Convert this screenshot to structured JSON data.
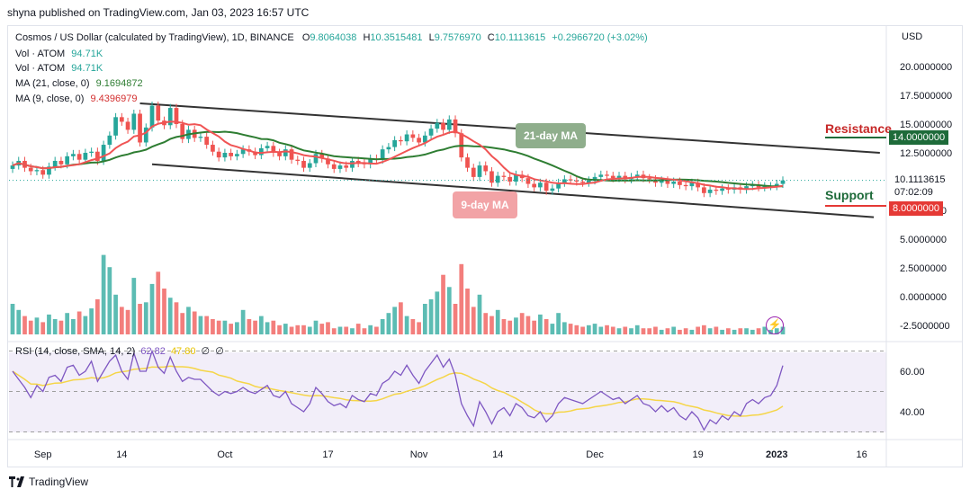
{
  "headline": "shyna published on TradingView.com, Jan 03, 2023 16:57 UTC",
  "legend": {
    "symbol": "Cosmos / US Dollar (calculated by TradingView), 1D, BINANCE",
    "o_label": "O",
    "o": "9.8064038",
    "h_label": "H",
    "h": "10.3515481",
    "l_label": "L",
    "l": "9.7576970",
    "c_label": "C",
    "c": "10.1113615",
    "change": "+0.2966720 (+3.02%)",
    "vol1_label": "Vol · ATOM",
    "vol1": "94.71K",
    "vol2_label": "Vol · ATOM",
    "vol2": "94.71K",
    "ma21_label": "MA (21, close, 0)",
    "ma21": "9.1694872",
    "ma9_label": "MA (9, close, 0)",
    "ma9": "9.4396979",
    "rsi_label": "RSI (14, close, SMA, 14, 2)",
    "rsi": "62.82",
    "rsi_sma": "47.80",
    "rsi_extra1": "∅",
    "rsi_extra2": "∅"
  },
  "currency": "USD",
  "annotations": {
    "ma21": "21-day MA",
    "ma9": "9-day MA",
    "resistance": "Resistance",
    "support": "Support"
  },
  "tags": {
    "resistance_value": "14.0000000",
    "price_value": "10.1113615",
    "countdown": "07:02:09",
    "support_value": "8.0000000"
  },
  "colors": {
    "up": "#26a69a",
    "down": "#ef5350",
    "ma21": "#2e7d32",
    "ma9": "#f05454",
    "resistance": "#1e6b3a",
    "support": "#e53935",
    "rsi_line": "#7e57c2",
    "rsi_sma": "#f5d547"
  },
  "footer": "TradingView",
  "chart_data": {
    "type": "candlestick",
    "price_ticks": [
      "20.0000000",
      "17.5000000",
      "15.0000000",
      "12.5000000",
      "10.0000000",
      "7.5000000",
      "5.0000000",
      "2.5000000",
      "0.0000000",
      "-2.5000000"
    ],
    "price_tick_values": [
      20,
      17.5,
      15,
      12.5,
      10,
      7.5,
      5,
      2.5,
      0,
      -2.5
    ],
    "rsi_ticks": [
      "60.00",
      "40.00"
    ],
    "rsi_tick_values": [
      60,
      40
    ],
    "x_labels": [
      "Sep",
      "14",
      "Oct",
      "17",
      "Nov",
      "14",
      "Dec",
      "19",
      "2023",
      "16"
    ],
    "x_label_index": [
      5,
      18,
      35,
      52,
      67,
      80,
      96,
      113,
      126,
      140
    ],
    "resistance": 14,
    "support": 8,
    "last_close": 10.1113615,
    "trend_upper": [
      [
        21,
        16.8
      ],
      [
        143,
        12.5
      ]
    ],
    "trend_lower": [
      [
        23,
        11.5
      ],
      [
        142,
        6.9
      ]
    ],
    "closes": [
      11.4,
      11.8,
      11.2,
      10.9,
      11.0,
      10.6,
      11.3,
      11.8,
      11.5,
      12.2,
      12.4,
      11.9,
      12.5,
      12.6,
      11.8,
      13.2,
      14.0,
      15.6,
      15.2,
      14.5,
      15.9,
      13.4,
      14.7,
      16.6,
      15.3,
      14.9,
      16.4,
      15.0,
      13.7,
      14.5,
      13.8,
      13.9,
      13.2,
      12.6,
      12.1,
      12.5,
      12.2,
      12.4,
      12.8,
      12.6,
      12.3,
      12.9,
      13.1,
      12.5,
      12.2,
      12.8,
      11.9,
      11.8,
      11.2,
      11.6,
      12.4,
      12.0,
      11.5,
      11.1,
      11.4,
      11.2,
      11.8,
      11.6,
      11.5,
      12.0,
      11.9,
      12.8,
      13.0,
      13.6,
      13.5,
      14.1,
      13.8,
      13.4,
      14.0,
      14.6,
      15.1,
      14.5,
      15.4,
      14.2,
      12.1,
      11.2,
      10.4,
      11.4,
      10.9,
      9.9,
      10.5,
      10.4,
      10.0,
      10.6,
      10.3,
      9.8,
      9.5,
      9.9,
      9.2,
      9.4,
      9.9,
      10.2,
      10.1,
      10.0,
      9.9,
      10.1,
      10.4,
      10.6,
      10.5,
      10.3,
      10.5,
      10.2,
      10.4,
      10.6,
      10.3,
      10.2,
      9.9,
      10.1,
      9.8,
      10.0,
      9.7,
      9.6,
      9.9,
      9.5,
      9.0,
      9.3,
      9.2,
      9.4,
      9.3,
      9.5,
      9.3,
      9.6,
      9.7,
      9.5,
      9.6,
      9.6,
      9.8,
      10.1
    ],
    "volumes": [
      2.0,
      1.6,
      1.2,
      0.9,
      1.1,
      0.8,
      1.3,
      1.0,
      0.9,
      1.4,
      1.0,
      1.5,
      1.2,
      1.7,
      2.3,
      5.2,
      4.4,
      2.6,
      1.8,
      1.6,
      3.7,
      2.0,
      2.1,
      3.3,
      4.1,
      3.0,
      2.4,
      2.1,
      1.4,
      1.8,
      1.5,
      1.2,
      1.2,
      1.0,
      0.9,
      0.9,
      0.7,
      0.8,
      1.6,
      1.0,
      0.9,
      1.2,
      0.8,
      0.9,
      0.6,
      0.7,
      0.5,
      0.6,
      0.6,
      0.5,
      0.9,
      0.7,
      0.8,
      0.4,
      0.5,
      0.5,
      0.4,
      0.7,
      0.4,
      0.6,
      0.5,
      1.0,
      1.4,
      1.8,
      2.1,
      1.2,
      1.0,
      0.8,
      2.0,
      2.3,
      2.8,
      3.9,
      3.1,
      2.0,
      4.6,
      3.0,
      1.8,
      2.6,
      1.4,
      1.2,
      1.6,
      1.0,
      0.9,
      1.1,
      1.4,
      1.2,
      0.9,
      1.3,
      1.0,
      0.7,
      1.4,
      0.8,
      0.7,
      0.6,
      0.5,
      0.6,
      0.7,
      0.5,
      0.6,
      0.5,
      0.4,
      0.5,
      0.4,
      0.6,
      0.4,
      0.4,
      0.5,
      0.3,
      0.4,
      0.5,
      0.3,
      0.4,
      0.3,
      0.5,
      0.6,
      0.4,
      0.5,
      0.3,
      0.4,
      0.3,
      0.4,
      0.4,
      0.3,
      0.4,
      0.5,
      0.3,
      0.4,
      0.5
    ],
    "rsi": [
      60,
      56,
      52,
      47,
      53,
      50,
      57,
      58,
      55,
      62,
      63,
      58,
      60,
      65,
      55,
      60,
      65,
      68,
      60,
      56,
      69,
      60,
      60,
      70,
      62,
      59,
      67,
      60,
      55,
      57,
      56,
      56,
      53,
      50,
      48,
      50,
      49,
      50,
      52,
      50,
      49,
      51,
      53,
      48,
      47,
      50,
      44,
      42,
      40,
      44,
      52,
      49,
      45,
      43,
      44,
      42,
      48,
      46,
      45,
      49,
      48,
      54,
      56,
      60,
      58,
      63,
      58,
      54,
      60,
      64,
      68,
      62,
      66,
      58,
      44,
      38,
      33,
      45,
      40,
      34,
      40,
      42,
      38,
      44,
      42,
      38,
      37,
      40,
      35,
      38,
      44,
      47,
      46,
      45,
      44,
      46,
      48,
      50,
      48,
      46,
      47,
      44,
      46,
      48,
      44,
      43,
      40,
      43,
      40,
      42,
      38,
      36,
      40,
      37,
      31,
      36,
      34,
      38,
      36,
      40,
      38,
      44,
      46,
      44,
      47,
      48,
      53,
      62.82
    ]
  }
}
